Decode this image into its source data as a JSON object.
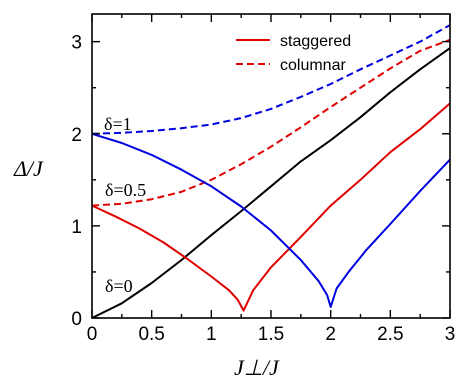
{
  "chart_data": {
    "type": "line",
    "xlabel": "J⊥/J",
    "ylabel": "Δ/J",
    "xlim": [
      0,
      3
    ],
    "ylim": [
      0,
      3.3
    ],
    "xticks": [
      "0",
      "0.5",
      "1",
      "1.5",
      "2",
      "2.5",
      "3"
    ],
    "yticks": [
      "0",
      "1",
      "2",
      "3"
    ],
    "grid": false,
    "legend_position": "top-right",
    "legend": [
      {
        "label": "staggered",
        "style": "solid",
        "color": "#e00000"
      },
      {
        "label": "columnar",
        "style": "dashed",
        "color": "#e00000"
      }
    ],
    "annotations": [
      {
        "text": "δ=1",
        "x": 0.1,
        "y": 2.13
      },
      {
        "text": "δ=0.5",
        "x": 0.12,
        "y": 1.36
      },
      {
        "text": "δ=0",
        "x": 0.12,
        "y": 0.37
      }
    ],
    "series": [
      {
        "group": "δ=0",
        "kind": "staggered",
        "color": "#000000",
        "style": "solid",
        "x": [
          0,
          0.25,
          0.5,
          0.75,
          1.0,
          1.25,
          1.5,
          1.75,
          2.0,
          2.25,
          2.5,
          2.75,
          3.0
        ],
        "y": [
          0,
          0.16,
          0.38,
          0.63,
          0.9,
          1.16,
          1.43,
          1.7,
          1.93,
          2.18,
          2.45,
          2.7,
          2.93
        ]
      },
      {
        "group": "δ=0.5",
        "kind": "staggered",
        "color": "#e00000",
        "style": "solid",
        "x": [
          0,
          0.2,
          0.4,
          0.6,
          0.8,
          1.0,
          1.15,
          1.22,
          1.27,
          1.35,
          1.5,
          1.75,
          2.0,
          2.25,
          2.5,
          2.75,
          3.0
        ],
        "y": [
          1.22,
          1.1,
          0.97,
          0.82,
          0.64,
          0.45,
          0.3,
          0.2,
          0.08,
          0.3,
          0.55,
          0.88,
          1.22,
          1.5,
          1.8,
          2.05,
          2.33
        ]
      },
      {
        "group": "δ=0.5",
        "kind": "columnar",
        "color": "#e00000",
        "style": "dashed",
        "x": [
          0,
          0.25,
          0.5,
          0.75,
          1.0,
          1.25,
          1.5,
          1.75,
          2.0,
          2.25,
          2.5,
          2.75,
          3.0
        ],
        "y": [
          1.22,
          1.24,
          1.29,
          1.37,
          1.5,
          1.67,
          1.86,
          2.07,
          2.29,
          2.5,
          2.71,
          2.9,
          3.02
        ]
      },
      {
        "group": "δ=1",
        "kind": "staggered",
        "color": "#0000e0",
        "style": "solid",
        "x": [
          0,
          0.25,
          0.5,
          0.75,
          1.0,
          1.25,
          1.5,
          1.75,
          1.9,
          1.97,
          2.0,
          2.05,
          2.15,
          2.3,
          2.5,
          2.75,
          3.0
        ],
        "y": [
          2.0,
          1.9,
          1.77,
          1.61,
          1.43,
          1.21,
          0.95,
          0.63,
          0.4,
          0.25,
          0.12,
          0.32,
          0.5,
          0.74,
          1.02,
          1.38,
          1.72
        ]
      },
      {
        "group": "δ=1",
        "kind": "columnar",
        "color": "#0000e0",
        "style": "dashed",
        "x": [
          0,
          0.25,
          0.5,
          0.75,
          1.0,
          1.25,
          1.5,
          1.75,
          2.0,
          2.25,
          2.5,
          2.75,
          3.0
        ],
        "y": [
          2.0,
          2.01,
          2.03,
          2.06,
          2.1,
          2.17,
          2.27,
          2.4,
          2.54,
          2.7,
          2.85,
          3.0,
          3.18
        ]
      }
    ]
  }
}
